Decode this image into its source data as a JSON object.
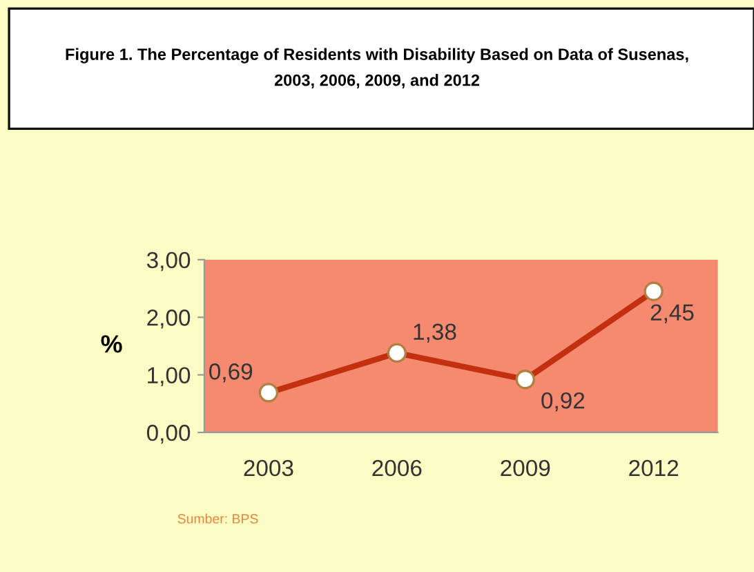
{
  "chart_data": {
    "type": "line",
    "title": "Figure 1. The Percentage of Residents with Disability Based on Data of Susenas,\n2003, 2006, 2009, and 2012",
    "ylabel": "%",
    "categories": [
      "2003",
      "2006",
      "2009",
      "2012"
    ],
    "values": [
      0.69,
      1.38,
      0.92,
      2.45
    ],
    "value_labels": [
      "0,69",
      "1,38",
      "0,92",
      "2,45"
    ],
    "color": "#c23010",
    "marker": "circle",
    "line_style": "solid",
    "ylim": [
      0,
      3
    ],
    "yticks": [
      {
        "value": 0,
        "label": "0,00"
      },
      {
        "value": 1,
        "label": "1,00"
      },
      {
        "value": 2,
        "label": "2,00"
      },
      {
        "value": 3,
        "label": "3,00"
      }
    ],
    "grid": false,
    "annotations": [
      "Sumber: BPS"
    ]
  }
}
